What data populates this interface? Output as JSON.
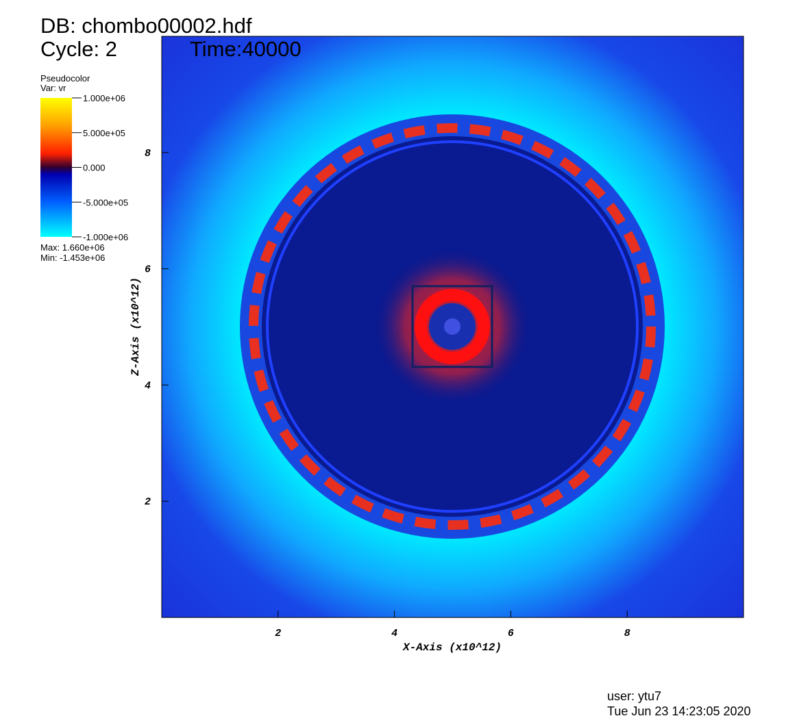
{
  "chart_data": {
    "type": "pseudocolor",
    "title": "DB: chombo00002.hdf",
    "cycle": "Cycle: 2",
    "time": "Time:40000",
    "legend_title": "Pseudocolor",
    "legend_var": "Var: vr",
    "legend_max": "Max:  1.660e+06",
    "legend_min": "Min: -1.453e+06",
    "colorbar_lim": [
      -1000000,
      1000000
    ],
    "colorbar_ticks": [
      {
        "value": 1000000,
        "label": "1.000e+06"
      },
      {
        "value": 500000,
        "label": "5.000e+05"
      },
      {
        "value": 0,
        "label": "0.000"
      },
      {
        "value": -500000,
        "label": "-5.000e+05"
      },
      {
        "value": -1000000,
        "label": "-1.000e+06"
      }
    ],
    "x_label": "X-Axis (x10^12)",
    "y_label": "Z-Axis (x10^12)",
    "xlim": [
      0,
      10
    ],
    "ylim": [
      0,
      10
    ],
    "xticks": [
      2,
      4,
      6,
      8
    ],
    "yticks": [
      2,
      4,
      6,
      8
    ],
    "user": "user: ytu7",
    "date": "Tue Jun 23 14:23:05 2020"
  }
}
